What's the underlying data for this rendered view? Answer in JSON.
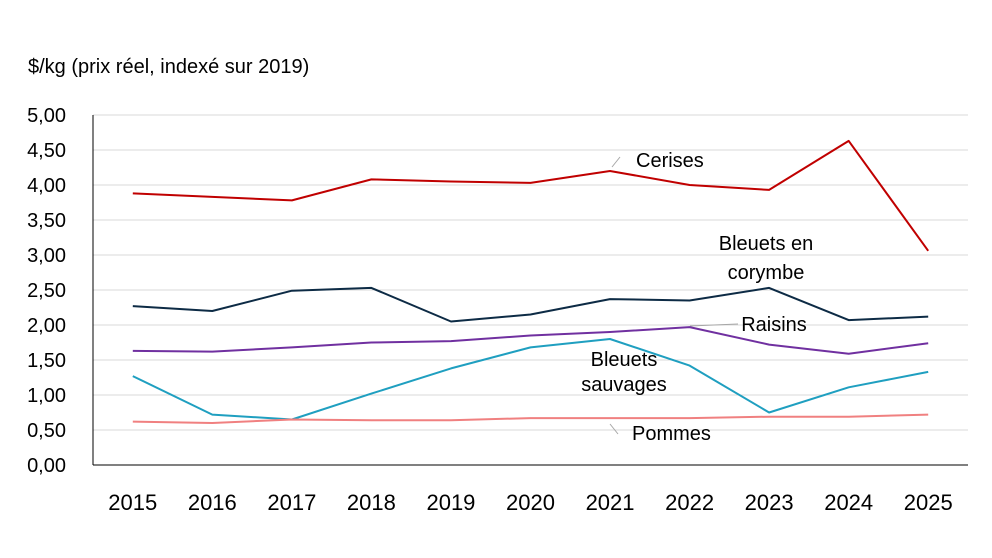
{
  "chart_data": {
    "type": "line",
    "title": "",
    "ylabel": "$/kg (prix réel, indexé sur 2019)",
    "xlabel": "",
    "ylim": [
      0,
      5
    ],
    "ytick_values": [
      0,
      0.5,
      1,
      1.5,
      2,
      2.5,
      3,
      3.5,
      4,
      4.5,
      5
    ],
    "ytick_labels": [
      "0,00",
      "0,50",
      "1,00",
      "1,50",
      "2,00",
      "2,50",
      "3,00",
      "3,50",
      "4,00",
      "4,50",
      "5,00"
    ],
    "x": [
      "2015",
      "2016",
      "2017",
      "2018",
      "2019",
      "2020",
      "2021",
      "2022",
      "2023",
      "2024",
      "2025"
    ],
    "grid": true,
    "legend": "none",
    "series": [
      {
        "name": "Cerises",
        "color": "#c00000",
        "values": [
          3.88,
          3.83,
          3.78,
          4.08,
          4.05,
          4.03,
          4.2,
          4.0,
          3.93,
          4.63,
          3.06
        ]
      },
      {
        "name": "Bleuets en corymbe",
        "color": "#0d2b45",
        "values": [
          2.27,
          2.2,
          2.49,
          2.53,
          2.05,
          2.15,
          2.37,
          2.35,
          2.53,
          2.07,
          2.12
        ]
      },
      {
        "name": "Raisins",
        "color": "#7030a0",
        "values": [
          1.63,
          1.62,
          1.68,
          1.75,
          1.77,
          1.85,
          1.9,
          1.97,
          1.72,
          1.59,
          1.74
        ]
      },
      {
        "name": "Bleuets sauvages",
        "color": "#1f9fc0",
        "values": [
          1.27,
          0.72,
          0.65,
          1.02,
          1.38,
          1.68,
          1.8,
          1.42,
          0.75,
          1.11,
          1.33
        ]
      },
      {
        "name": "Pommes",
        "color": "#f08080",
        "values": [
          0.62,
          0.6,
          0.65,
          0.64,
          0.64,
          0.67,
          0.67,
          0.67,
          0.69,
          0.69,
          0.72
        ]
      }
    ],
    "annotations": [
      {
        "series": "Cerises",
        "lines": [
          "Cerises"
        ]
      },
      {
        "series": "Bleuets en corymbe",
        "lines": [
          "Bleuets en",
          "corymbe"
        ]
      },
      {
        "series": "Raisins",
        "lines": [
          "Raisins"
        ]
      },
      {
        "series": "Bleuets sauvages",
        "lines": [
          "Bleuets",
          "sauvages"
        ]
      },
      {
        "series": "Pommes",
        "lines": [
          "Pommes"
        ]
      }
    ]
  }
}
